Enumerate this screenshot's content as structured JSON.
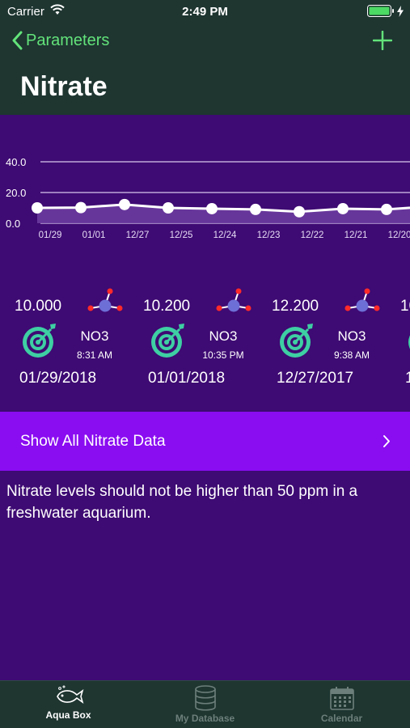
{
  "status_bar": {
    "carrier": "Carrier",
    "time": "2:49 PM"
  },
  "nav": {
    "back_label": "Parameters",
    "title": "Nitrate"
  },
  "chart_data": {
    "type": "line",
    "categories": [
      "01/29",
      "01/01",
      "12/27",
      "12/25",
      "12/24",
      "12/23",
      "12/22",
      "12/21",
      "12/20"
    ],
    "series": [
      {
        "values": [
          10.0,
          10.2,
          12.2,
          10.0,
          9.5,
          9.0,
          7.5,
          9.5,
          9.0
        ]
      }
    ],
    "yticks": [
      "0.0",
      "20.0",
      "40.0"
    ],
    "ylim": [
      0,
      40
    ],
    "grid": true,
    "colors": {
      "line": "#ffffff",
      "fill": "#6b3ba0",
      "grid": "#d8c8ee"
    }
  },
  "readings": [
    {
      "value": "10.000",
      "formula": "NO3",
      "time": "8:31 AM",
      "date": "01/29/2018"
    },
    {
      "value": "10.200",
      "formula": "NO3",
      "time": "10:35 PM",
      "date": "01/01/2018"
    },
    {
      "value": "12.200",
      "formula": "NO3",
      "time": "9:38 AM",
      "date": "12/27/2017"
    },
    {
      "value": "10",
      "formula": "",
      "time": "",
      "date": "1"
    }
  ],
  "show_all": {
    "label": "Show All Nitrate Data"
  },
  "info_text": "Nitrate levels should not be higher than 50 ppm in a freshwater aquarium.",
  "tabs": [
    {
      "label": "Aqua Box",
      "icon": "fish-icon",
      "active": true
    },
    {
      "label": "My Database",
      "icon": "database-icon",
      "active": false
    },
    {
      "label": "Calendar",
      "icon": "calendar-icon",
      "active": false
    }
  ],
  "colors": {
    "accent": "#63e37a",
    "bar_bg": "#1e3530",
    "page_bg": "#3e0a73",
    "button_bg": "#8a0cf1",
    "target": "#3ecfa3"
  }
}
